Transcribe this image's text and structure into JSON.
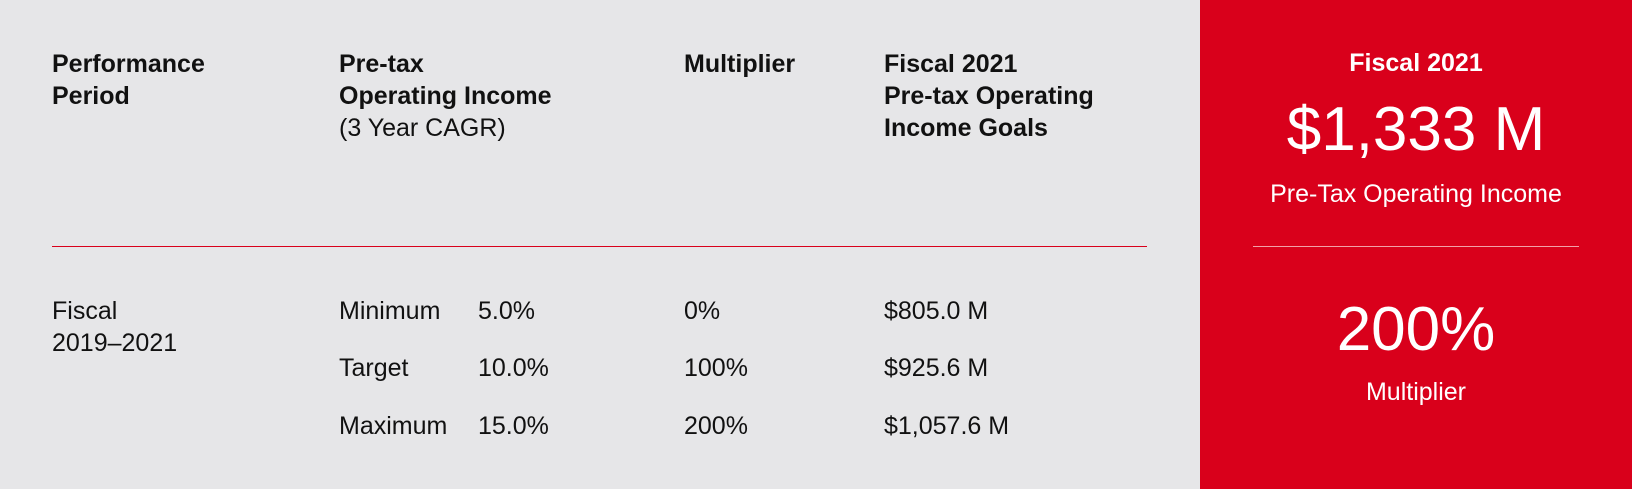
{
  "table": {
    "headers": [
      [
        "Performance",
        "Period"
      ],
      [
        "Pre-tax",
        "Operating Income",
        "(3 Year CAGR)"
      ],
      [
        "Multiplier"
      ],
      [
        "Fiscal 2021",
        "Pre-tax Operating",
        "Income Goals"
      ]
    ],
    "period": [
      "Fiscal",
      "2019–2021"
    ],
    "rows": [
      [
        "Minimum",
        "5.0%",
        "0%",
        "$805.0 M"
      ],
      [
        "Target",
        "10.0%",
        "100%",
        "$925.6 M"
      ],
      [
        "Maximum",
        "15.0%",
        "200%",
        "$1,057.6 M"
      ]
    ]
  },
  "summary": {
    "title": "Fiscal 2021",
    "income": "$1,333 M",
    "income_label": "Pre-Tax Operating Income",
    "multiplier": "200%",
    "multiplier_label": "Multiplier"
  }
}
